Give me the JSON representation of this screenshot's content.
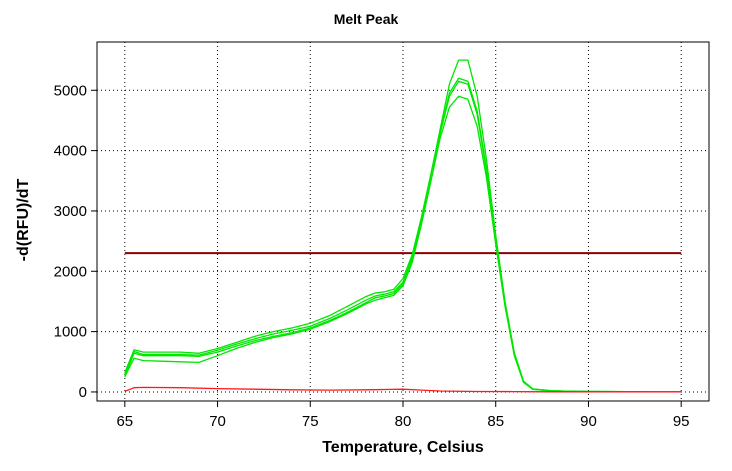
{
  "chart_data": {
    "type": "line",
    "title": "Melt Peak",
    "xlabel": "Temperature, Celsius",
    "ylabel": "-d(RFU)/dT",
    "xlim": [
      63.5,
      96.5
    ],
    "ylim": [
      -150,
      5800
    ],
    "xticks": [
      65,
      70,
      75,
      80,
      85,
      90,
      95
    ],
    "yticks": [
      0,
      1000,
      2000,
      3000,
      4000,
      5000
    ],
    "grid": true,
    "legend": "none",
    "colors": {
      "sample": "#00e600",
      "negative": "#ff1a1a",
      "threshold": "#8b0000",
      "frame": "#000000"
    },
    "threshold": 2300,
    "series": [
      {
        "color": "#00e600",
        "x": [
          65,
          65.5,
          66,
          67,
          68,
          69,
          70,
          71,
          72,
          73,
          74,
          75,
          76,
          77,
          78,
          78.5,
          79,
          79.5,
          80,
          80.5,
          81,
          81.5,
          82,
          82.5,
          83,
          83.5,
          84,
          84.5,
          85,
          85.5,
          86,
          86.5,
          87,
          88,
          89,
          90,
          92,
          94,
          95
        ],
        "y": [
          320,
          700,
          660,
          660,
          660,
          640,
          720,
          820,
          920,
          1000,
          1060,
          1140,
          1260,
          1420,
          1580,
          1640,
          1660,
          1700,
          1880,
          2280,
          2900,
          3600,
          4350,
          5100,
          5500,
          5500,
          4900,
          3850,
          2600,
          1500,
          650,
          180,
          50,
          20,
          10,
          8,
          5,
          5,
          0
        ]
      },
      {
        "color": "#00e600",
        "x": [
          65,
          65.5,
          66,
          67,
          68,
          69,
          70,
          71,
          72,
          73,
          74,
          75,
          76,
          77,
          78,
          78.5,
          79,
          79.5,
          80,
          80.5,
          81,
          81.5,
          82,
          82.5,
          83,
          83.5,
          84,
          84.5,
          85,
          85.5,
          86,
          86.5,
          87,
          88,
          89,
          90,
          92,
          94,
          95
        ],
        "y": [
          290,
          670,
          620,
          620,
          620,
          610,
          690,
          790,
          880,
          960,
          1020,
          1090,
          1210,
          1360,
          1520,
          1590,
          1620,
          1660,
          1820,
          2230,
          2880,
          3600,
          4300,
          4950,
          5200,
          5150,
          4650,
          3700,
          2550,
          1480,
          640,
          170,
          45,
          18,
          10,
          8,
          5,
          5,
          0
        ]
      },
      {
        "color": "#00e600",
        "x": [
          65,
          65.5,
          66,
          67,
          68,
          69,
          70,
          71,
          72,
          73,
          74,
          75,
          76,
          77,
          78,
          78.5,
          79,
          79.5,
          80,
          80.5,
          81,
          81.5,
          82,
          82.5,
          83,
          83.5,
          84,
          84.5,
          85,
          85.5,
          86,
          86.5,
          87,
          88,
          89,
          90,
          92,
          94,
          95
        ],
        "y": [
          270,
          640,
          600,
          600,
          600,
          590,
          660,
          760,
          850,
          920,
          980,
          1060,
          1180,
          1320,
          1480,
          1560,
          1590,
          1630,
          1790,
          2200,
          2850,
          3580,
          4280,
          4900,
          5150,
          5100,
          4600,
          3650,
          2500,
          1450,
          620,
          165,
          45,
          18,
          10,
          8,
          5,
          5,
          0
        ]
      },
      {
        "color": "#00e600",
        "x": [
          65,
          65.5,
          66,
          67,
          68,
          69,
          70,
          71,
          72,
          73,
          74,
          75,
          76,
          77,
          78,
          78.5,
          79,
          79.5,
          80,
          80.5,
          81,
          81.5,
          82,
          82.5,
          83,
          83.5,
          84,
          84.5,
          85,
          85.5,
          86,
          86.5,
          87,
          88,
          89,
          90,
          92,
          94,
          95
        ],
        "y": [
          250,
          560,
          520,
          510,
          500,
          490,
          600,
          720,
          820,
          900,
          960,
          1040,
          1160,
          1300,
          1460,
          1520,
          1560,
          1600,
          1760,
          2150,
          2780,
          3480,
          4200,
          4720,
          4900,
          4850,
          4400,
          3550,
          2450,
          1420,
          600,
          160,
          45,
          18,
          10,
          8,
          5,
          5,
          0
        ]
      },
      {
        "color": "#ff1a1a",
        "x": [
          65,
          65.5,
          66,
          68,
          70,
          72,
          74,
          76,
          78,
          79,
          80,
          81,
          82,
          84,
          86,
          88,
          90,
          92,
          94,
          95
        ],
        "y": [
          10,
          70,
          75,
          70,
          55,
          45,
          35,
          30,
          35,
          40,
          45,
          30,
          15,
          8,
          5,
          3,
          2,
          2,
          1,
          0
        ]
      }
    ]
  }
}
